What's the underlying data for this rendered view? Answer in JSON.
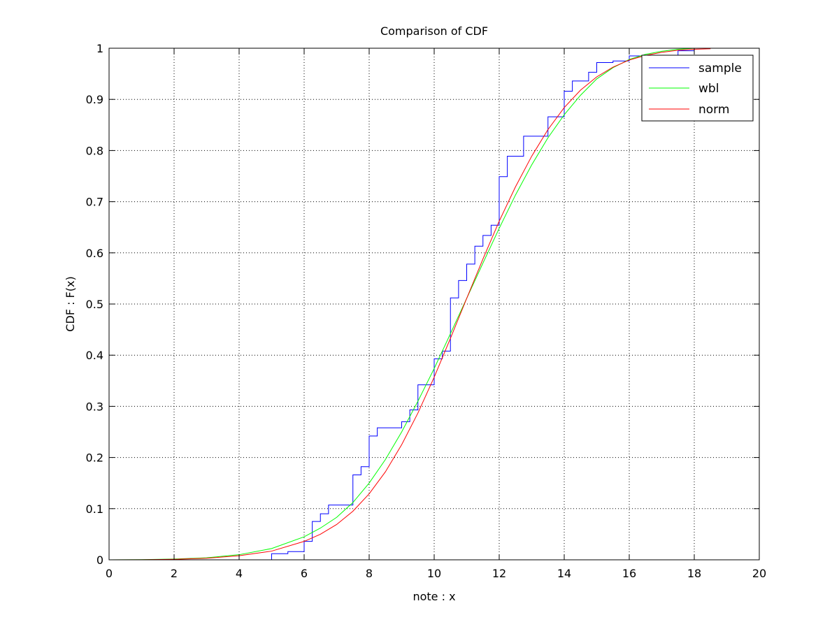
{
  "chart_data": {
    "type": "line",
    "title": "Comparison of CDF",
    "xlabel": "note : x",
    "ylabel": "CDF : F(x)",
    "xlim": [
      0,
      20
    ],
    "ylim": [
      0,
      1
    ],
    "xticks": [
      0,
      2,
      4,
      6,
      8,
      10,
      12,
      14,
      16,
      18,
      20
    ],
    "xtick_labels": [
      "0",
      "2",
      "4",
      "6",
      "8",
      "10",
      "12",
      "14",
      "16",
      "18",
      "20"
    ],
    "yticks": [
      0,
      0.1,
      0.2,
      0.3,
      0.4,
      0.5,
      0.6,
      0.7,
      0.8,
      0.9,
      1
    ],
    "ytick_labels": [
      "0",
      "0.1",
      "0.2",
      "0.3",
      "0.4",
      "0.5",
      "0.6",
      "0.7",
      "0.8",
      "0.9",
      "1"
    ],
    "grid": true,
    "legend_position": "top-right",
    "series": [
      {
        "name": "sample",
        "color": "#0000ff",
        "style": "stairs",
        "x": [
          0,
          5,
          5.5,
          6,
          6.25,
          6.5,
          6.75,
          7.5,
          7.75,
          8,
          8.25,
          9,
          9.25,
          9.5,
          10,
          10.25,
          10.5,
          10.75,
          11,
          11.25,
          11.5,
          11.75,
          12,
          12.25,
          12.75,
          13.5,
          14,
          14.25,
          14.75,
          15,
          15.5,
          16,
          17.5,
          18,
          18.5
        ],
        "y": [
          0,
          0.012,
          0.016,
          0.036,
          0.075,
          0.09,
          0.107,
          0.166,
          0.182,
          0.242,
          0.258,
          0.27,
          0.293,
          0.342,
          0.393,
          0.408,
          0.512,
          0.546,
          0.578,
          0.613,
          0.634,
          0.654,
          0.749,
          0.789,
          0.828,
          0.866,
          0.916,
          0.936,
          0.953,
          0.972,
          0.975,
          0.985,
          0.995,
          1.0,
          1.0
        ]
      },
      {
        "name": "wbl",
        "color": "#00ff00",
        "style": "line",
        "x": [
          0,
          1,
          2,
          3,
          4,
          5,
          6,
          6.5,
          7,
          7.5,
          8,
          8.5,
          9,
          9.5,
          10,
          10.5,
          11,
          11.5,
          12,
          12.5,
          13,
          13.5,
          14,
          14.5,
          15,
          15.5,
          16,
          16.5,
          17,
          17.5,
          18
        ],
        "y": [
          0,
          0.0003,
          0.0015,
          0.004,
          0.01,
          0.022,
          0.045,
          0.062,
          0.083,
          0.112,
          0.15,
          0.196,
          0.25,
          0.31,
          0.374,
          0.442,
          0.511,
          0.58,
          0.648,
          0.713,
          0.772,
          0.825,
          0.87,
          0.908,
          0.94,
          0.962,
          0.978,
          0.988,
          0.994,
          0.998,
          1.0
        ]
      },
      {
        "name": "norm",
        "color": "#ff0000",
        "style": "line",
        "x": [
          0,
          1,
          2,
          3,
          4,
          5,
          6,
          6.5,
          7,
          7.5,
          8,
          8.5,
          9,
          9.5,
          10,
          10.5,
          11,
          11.5,
          12,
          12.5,
          13,
          13.5,
          14,
          14.5,
          15,
          15.5,
          16,
          16.5,
          17,
          17.5,
          18,
          18.5
        ],
        "y": [
          0,
          0.0002,
          0.001,
          0.003,
          0.008,
          0.017,
          0.036,
          0.05,
          0.069,
          0.095,
          0.129,
          0.172,
          0.225,
          0.287,
          0.357,
          0.433,
          0.511,
          0.588,
          0.662,
          0.729,
          0.789,
          0.841,
          0.884,
          0.918,
          0.944,
          0.963,
          0.977,
          0.986,
          0.992,
          0.996,
          0.998,
          0.999
        ]
      }
    ]
  }
}
